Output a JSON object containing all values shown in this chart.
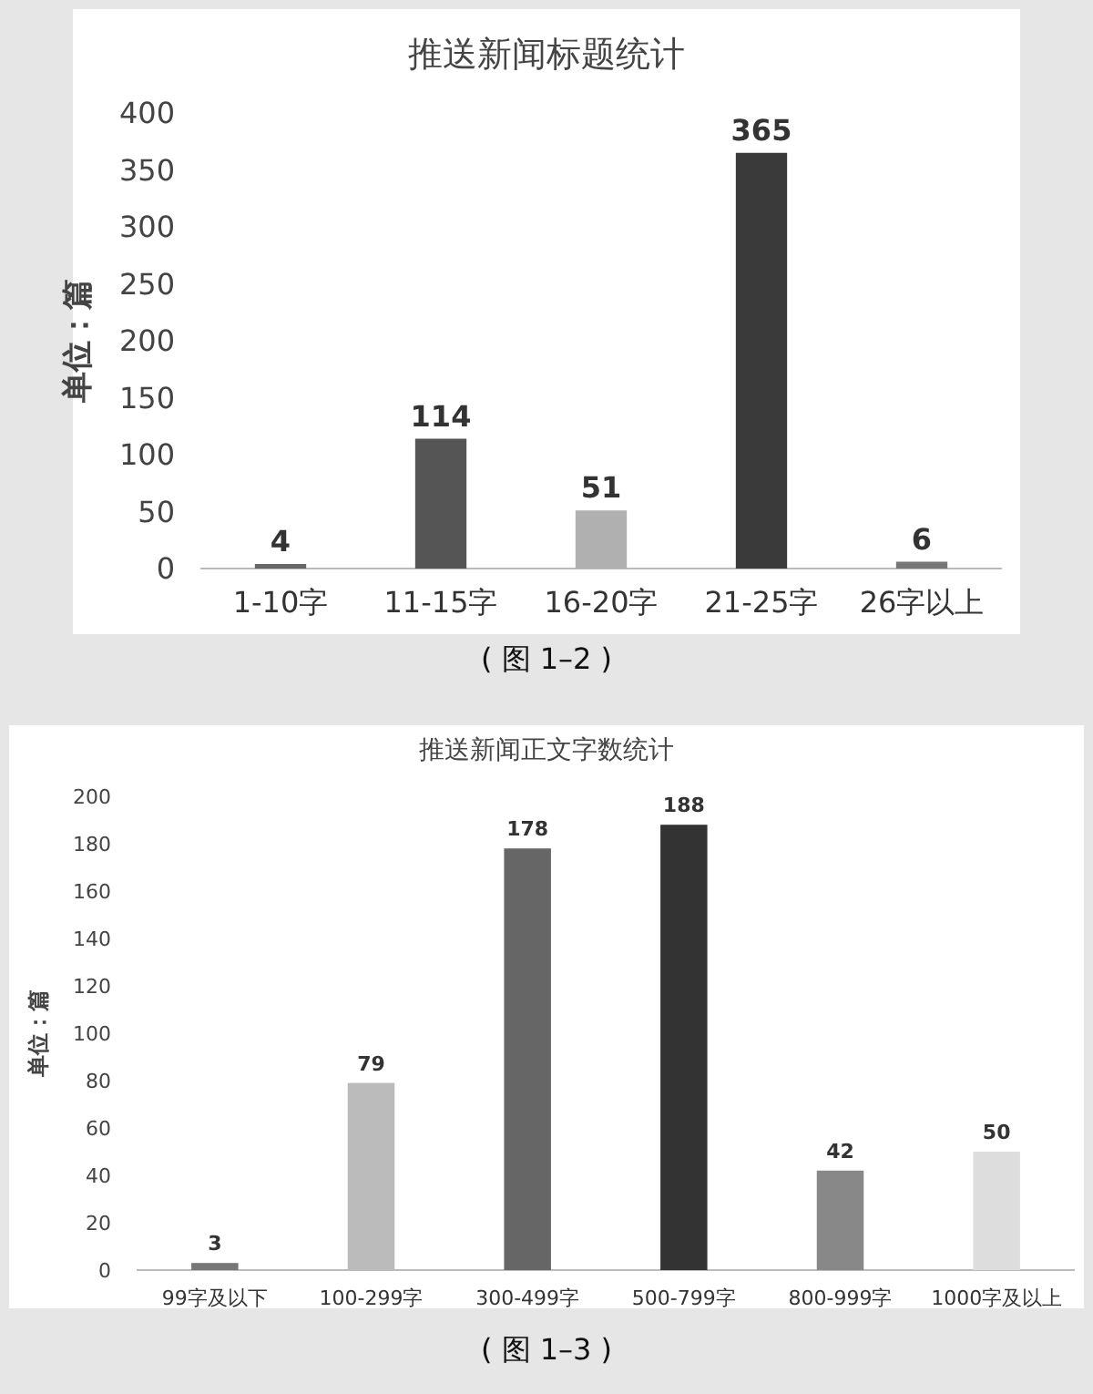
{
  "chart_data": [
    {
      "type": "bar",
      "title": "推送新闻标题统计",
      "ylabel": "单位：篇",
      "categories": [
        "1-10字",
        "11-15字",
        "16-20字",
        "21-25字",
        "26字以上"
      ],
      "values": [
        4,
        114,
        51,
        365,
        6
      ],
      "colors": [
        "#666666",
        "#555555",
        "#b0b0b0",
        "#3a3a3a",
        "#777777"
      ],
      "ylim": [
        0,
        400
      ],
      "yticks": [
        0,
        50,
        100,
        150,
        200,
        250,
        300,
        350,
        400
      ],
      "data_labels": true,
      "annotations": [
        "( 图 1–2 )"
      ]
    },
    {
      "type": "bar",
      "title": "推送新闻正文字数统计",
      "ylabel": "单位：篇",
      "categories": [
        "99字及以下",
        "100-299字",
        "300-499字",
        "500-799字",
        "800-999字",
        "1000字及以上"
      ],
      "values": [
        3,
        79,
        178,
        188,
        42,
        50
      ],
      "colors": [
        "#777777",
        "#bbbbbb",
        "#666666",
        "#333333",
        "#888888",
        "#dddddd"
      ],
      "ylim": [
        0,
        200
      ],
      "yticks": [
        0,
        20,
        40,
        60,
        80,
        100,
        120,
        140,
        160,
        180,
        200
      ],
      "data_labels": true,
      "annotations": [
        "( 图 1–3 )"
      ]
    }
  ]
}
